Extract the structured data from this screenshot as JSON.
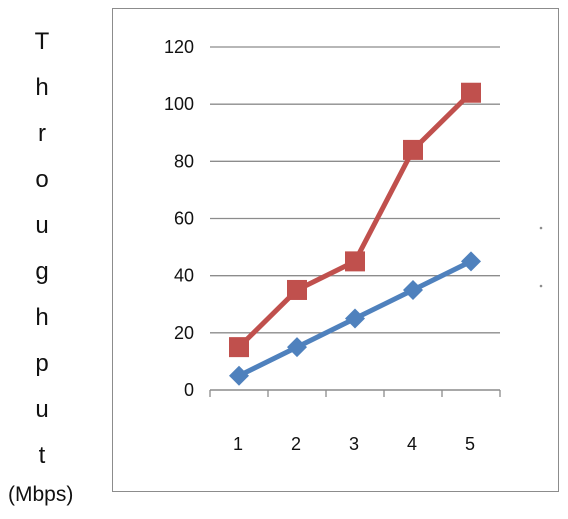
{
  "chart_data": {
    "type": "line",
    "title": "",
    "ylabel": "Throughput",
    "ylabel_letters": [
      "T",
      "h",
      "r",
      "o",
      "u",
      "g",
      "h",
      "p",
      "u",
      "t"
    ],
    "ylabel_unit": "(Mbps)",
    "xlabel": "",
    "categories": [
      "1",
      "2",
      "3",
      "4",
      "5"
    ],
    "ylim": [
      0,
      120
    ],
    "yticks": [
      "0",
      "20",
      "40",
      "60",
      "80",
      "100",
      "120"
    ],
    "grid": true,
    "legend": "none",
    "series": [
      {
        "values": [
          15,
          35,
          45,
          84,
          104
        ],
        "color": "#c0504d",
        "marker": "square"
      },
      {
        "values": [
          5,
          15,
          25,
          35,
          45
        ],
        "color": "#4f81bd",
        "marker": "diamond"
      }
    ]
  }
}
